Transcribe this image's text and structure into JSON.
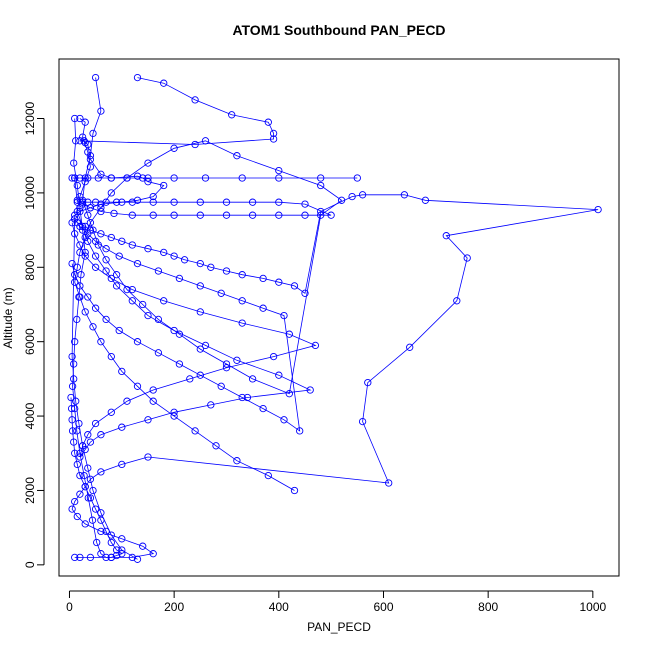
{
  "chart_data": {
    "type": "line",
    "title": "ATOM1 Southbound PAN_PECD",
    "xlabel": "PAN_PECD",
    "ylabel": "Altitude (m)",
    "xlim": [
      -20,
      1050
    ],
    "ylim": [
      -300,
      13600
    ],
    "xticks": [
      0,
      200,
      400,
      600,
      800,
      1000
    ],
    "yticks": [
      0,
      2000,
      4000,
      6000,
      8000,
      10000,
      12000
    ],
    "marker": "open-circle",
    "grid": false,
    "legend": "none",
    "colors": {
      "series": "#0000ff",
      "axis": "#000000",
      "background": "#ffffff"
    },
    "series": [
      {
        "x": [
          130,
          180,
          240,
          310,
          380,
          390,
          390,
          240,
          20,
          28,
          30,
          35,
          40,
          60,
          80,
          130,
          140,
          150,
          180,
          160,
          130,
          100,
          60,
          40,
          20,
          10,
          10,
          15,
          30,
          40,
          60,
          80,
          100,
          120,
          150,
          180,
          200,
          220,
          250,
          270,
          300,
          330,
          370,
          400,
          430,
          450,
          480,
          540,
          560,
          640,
          680,
          1010,
          720,
          760,
          740,
          650,
          570,
          560,
          610,
          150,
          100,
          60,
          40,
          30,
          20,
          10,
          5,
          15,
          30,
          60,
          100,
          140,
          160,
          120,
          80,
          40,
          20,
          10
        ],
        "y": [
          13100,
          12950,
          12500,
          12100,
          11900,
          11600,
          11450,
          11300,
          11400,
          11400,
          11350,
          11300,
          10900,
          10500,
          10400,
          10450,
          10400,
          10300,
          10200,
          9900,
          9800,
          9750,
          9700,
          9600,
          9500,
          9400,
          9300,
          9200,
          9100,
          9000,
          8900,
          8800,
          8700,
          8600,
          8500,
          8400,
          8300,
          8200,
          8100,
          8000,
          7900,
          7800,
          7700,
          7600,
          7500,
          7300,
          9500,
          9900,
          9950,
          9950,
          9800,
          9550,
          8850,
          8250,
          7100,
          5850,
          4900,
          3850,
          2200,
          2900,
          2700,
          2500,
          2300,
          2100,
          1900,
          1700,
          1500,
          1300,
          1100,
          900,
          700,
          500,
          300,
          200,
          200,
          200,
          200,
          200
        ]
      },
      {
        "x": [
          20,
          30,
          25,
          35,
          40,
          30,
          20,
          15,
          25,
          35,
          50,
          70,
          90,
          120,
          150,
          200,
          260,
          320,
          400,
          460,
          340,
          270,
          200,
          150,
          100,
          60,
          40,
          30,
          20,
          25,
          35,
          50,
          80,
          110,
          160,
          230,
          300,
          390,
          470,
          420,
          330,
          250,
          180,
          120,
          80,
          50,
          30,
          20,
          10,
          5
        ],
        "y": [
          12000,
          11900,
          11500,
          11100,
          10700,
          10300,
          9900,
          9500,
          9100,
          8700,
          8300,
          7900,
          7500,
          7100,
          6700,
          6300,
          5900,
          5500,
          5100,
          4700,
          4500,
          4300,
          4100,
          3900,
          3700,
          3500,
          3300,
          3100,
          2900,
          3200,
          3500,
          3800,
          4100,
          4400,
          4700,
          5000,
          5300,
          5600,
          5900,
          6200,
          6500,
          6800,
          7100,
          7400,
          7700,
          8000,
          8300,
          8600,
          8900,
          9200
        ]
      },
      {
        "x": [
          50,
          60,
          45,
          40,
          30,
          25,
          35,
          45,
          55,
          70,
          90,
          110,
          140,
          170,
          210,
          250,
          300,
          350,
          420,
          480,
          520,
          480,
          400,
          320,
          260,
          200,
          150,
          110,
          80,
          60,
          40,
          30,
          20,
          15,
          10,
          20,
          30,
          45,
          60,
          80,
          100,
          130,
          160,
          200,
          240,
          280,
          320,
          380,
          430
        ],
        "y": [
          13100,
          12200,
          11600,
          11000,
          10400,
          9800,
          9400,
          9000,
          8600,
          8200,
          7800,
          7400,
          7000,
          6600,
          6200,
          5800,
          5400,
          5000,
          4600,
          9400,
          9800,
          10200,
          10600,
          11000,
          11400,
          11200,
          10800,
          10400,
          10000,
          9600,
          9200,
          8800,
          8400,
          8000,
          7600,
          7200,
          6800,
          6400,
          6000,
          5600,
          5200,
          4800,
          4400,
          4000,
          3600,
          3200,
          2800,
          2400,
          2000
        ]
      },
      {
        "x": [
          10,
          12,
          8,
          15,
          20,
          25,
          30,
          22,
          18,
          14,
          10,
          8,
          6,
          10,
          14,
          20,
          28,
          36,
          44,
          52,
          60,
          70,
          80,
          90,
          100,
          90,
          80,
          70,
          60,
          50,
          40,
          30,
          20,
          15,
          10,
          8,
          6,
          5,
          4,
          3
        ],
        "y": [
          12000,
          11400,
          10800,
          10200,
          9600,
          9000,
          8400,
          7800,
          7200,
          6600,
          6000,
          5400,
          4800,
          4200,
          3600,
          3000,
          2400,
          1800,
          1200,
          600,
          300,
          200,
          200,
          250,
          300,
          400,
          600,
          900,
          1200,
          1500,
          1800,
          2100,
          2400,
          2700,
          3000,
          3300,
          3600,
          3900,
          4200,
          4500
        ]
      },
      {
        "x": [
          15,
          25,
          40,
          60,
          85,
          120,
          160,
          200,
          250,
          300,
          350,
          400,
          450,
          500,
          450,
          400,
          350,
          300,
          250,
          200,
          160,
          120,
          90,
          70,
          50,
          35,
          25,
          15,
          10,
          5,
          10,
          20,
          35,
          55,
          80,
          110,
          150,
          200,
          260,
          330,
          400,
          480,
          550
        ],
        "y": [
          9800,
          9700,
          9600,
          9500,
          9450,
          9400,
          9400,
          9400,
          9400,
          9400,
          9400,
          9400,
          9400,
          9400,
          9700,
          9750,
          9750,
          9750,
          9750,
          9750,
          9750,
          9750,
          9750,
          9750,
          9750,
          9750,
          9750,
          9750,
          10400,
          10400,
          10400,
          10400,
          10400,
          10400,
          10400,
          10400,
          10400,
          10400,
          10400,
          10400,
          10400,
          10400,
          10400
        ]
      },
      {
        "x": [
          5,
          10,
          20,
          35,
          50,
          70,
          95,
          130,
          170,
          210,
          250,
          290,
          330,
          370,
          410,
          440,
          410,
          370,
          330,
          290,
          250,
          210,
          170,
          130,
          95,
          70,
          50,
          35,
          20,
          10,
          5,
          8,
          12,
          18,
          25,
          35,
          45,
          60,
          80,
          100,
          130
        ],
        "y": [
          8100,
          7800,
          7500,
          7200,
          6900,
          6600,
          6300,
          6000,
          5700,
          5400,
          5100,
          4800,
          4500,
          4200,
          3900,
          3600,
          6700,
          6900,
          7100,
          7300,
          7500,
          7700,
          7900,
          8100,
          8300,
          8500,
          8700,
          8900,
          9100,
          9300,
          5600,
          5000,
          4400,
          3800,
          3200,
          2600,
          2000,
          1400,
          800,
          400,
          150
        ]
      }
    ]
  }
}
